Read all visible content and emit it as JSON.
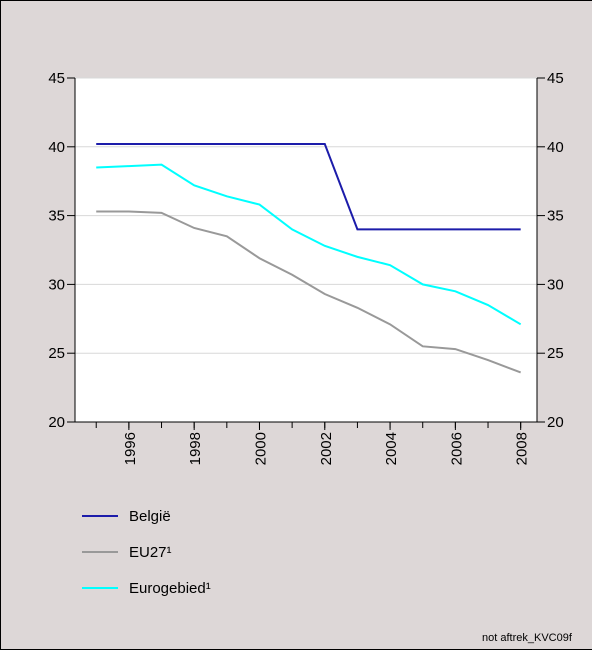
{
  "chart_data": {
    "type": "line",
    "x": [
      1995,
      1996,
      1997,
      1998,
      1999,
      2000,
      2001,
      2002,
      2003,
      2004,
      2005,
      2006,
      2007,
      2008
    ],
    "xlim": [
      1994.35,
      2008.5
    ],
    "xticks": [
      1996,
      1998,
      2000,
      2002,
      2004,
      2006,
      2008
    ],
    "ylim": [
      20,
      45
    ],
    "yticks": [
      20,
      25,
      30,
      35,
      40,
      45
    ],
    "y2lim": [
      20,
      45
    ],
    "y2ticks": [
      20,
      25,
      30,
      35,
      40,
      45
    ],
    "grid": true,
    "series": [
      {
        "name": "België",
        "color": "#1c1caa",
        "values": [
          40.2,
          40.2,
          40.2,
          40.2,
          40.2,
          40.2,
          40.2,
          40.2,
          34,
          34,
          34,
          34,
          34,
          34
        ]
      },
      {
        "name": "EU27¹",
        "color": "#999999",
        "values": [
          35.3,
          35.3,
          35.2,
          34.1,
          33.5,
          31.9,
          30.7,
          29.3,
          28.3,
          27.1,
          25.5,
          25.3,
          24.5,
          23.6
        ]
      },
      {
        "name": "Eurogebied¹",
        "color": "#00ffff",
        "values": [
          38.5,
          38.6,
          38.7,
          37.2,
          36.4,
          35.8,
          34.0,
          32.8,
          32.0,
          31.4,
          30.0,
          29.5,
          28.5,
          27.1
        ]
      }
    ],
    "footnote": "not aftrek_KVC09f"
  }
}
